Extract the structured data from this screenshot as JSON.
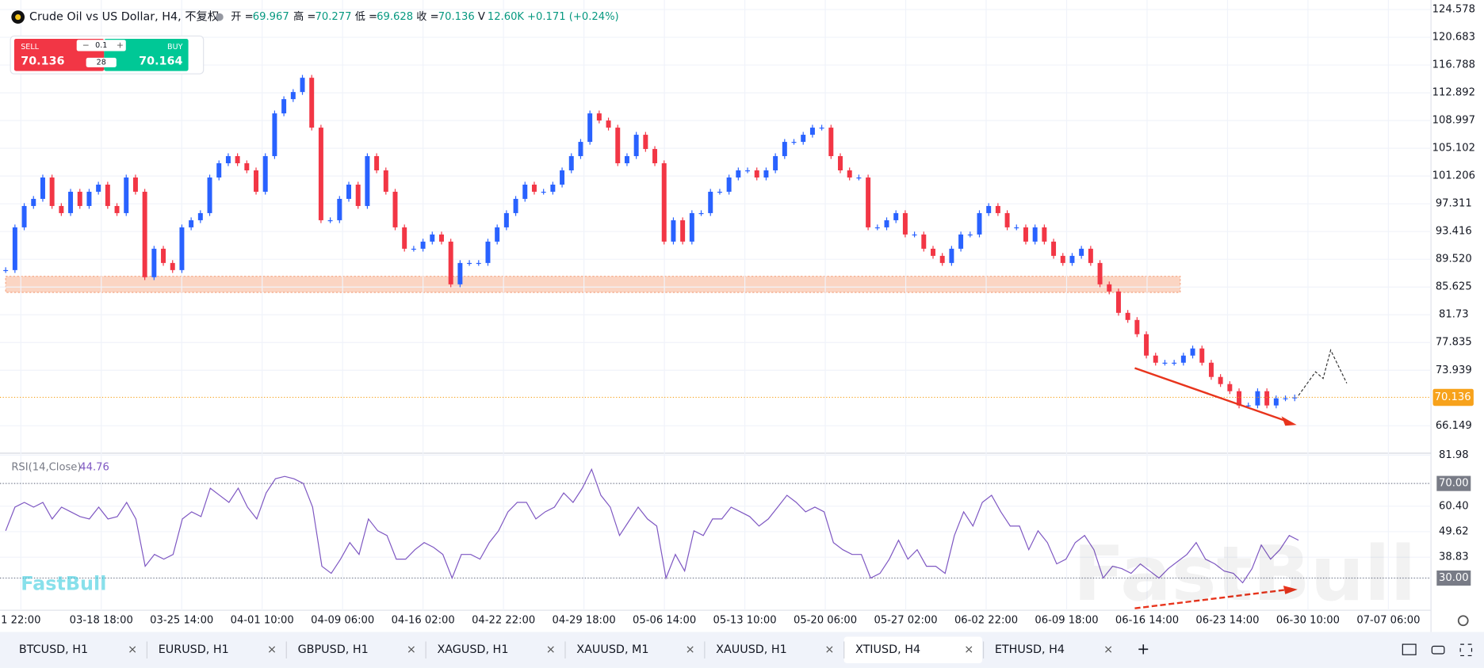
{
  "header": {
    "title": "Crude Oil vs US Dollar, H4, 不复权",
    "open_label": "开 =",
    "open": 69.967,
    "high_label": "高 =",
    "high": 70.277,
    "low_label": "低 =",
    "low": 69.628,
    "close_label": "收 =",
    "close": 70.136,
    "volume_label": "V",
    "volume": "12.60K",
    "change": "+0.171 (+0.24%)"
  },
  "trade_widget": {
    "sell_label": "SELL",
    "sell": 70.136,
    "lot": 0.1,
    "spread": 28,
    "buy_label": "BUY",
    "buy": 70.164
  },
  "chart_data": [
    {
      "type": "candle",
      "ylim": [
        62.43,
        125.91
      ],
      "yticks": [
        124.578,
        120.683,
        116.788,
        112.892,
        108.997,
        105.102,
        101.206,
        97.311,
        93.416,
        {
          "value": 89.52,
          "label": "89.520"
        },
        85.625,
        81.73,
        77.835,
        73.939,
        66.149
      ],
      "last_price": 70.136,
      "up_color": "#2962ff",
      "down_color": "#f23645",
      "x_tick_labels": [
        "1 22:00",
        "03-18 18:00",
        "03-25 14:00",
        "04-01 10:00",
        "04-09 06:00",
        "04-16 02:00",
        "04-22 22:00",
        "04-29 18:00",
        "05-06 14:00",
        "05-13 10:00",
        "05-20 06:00",
        "05-27 02:00",
        "06-02 22:00",
        "06-09 18:00",
        "06-16 14:00",
        "06-23 14:00",
        "06-30 10:00",
        "07-07 06:00"
      ],
      "series": [
        {
          "name": "XTIUSD",
          "values": [
            88,
            94,
            97,
            98,
            101,
            97,
            96,
            99,
            97,
            99,
            100,
            97,
            96,
            101,
            99,
            87,
            91,
            89,
            88,
            94,
            95,
            96,
            101,
            103,
            104,
            103,
            102,
            99,
            104,
            110,
            112,
            113,
            115,
            108,
            95,
            95,
            98,
            100,
            97,
            104,
            102,
            99,
            94,
            91,
            91,
            92,
            93,
            92,
            86,
            89,
            89,
            89,
            92,
            94,
            96,
            98,
            100,
            99,
            99,
            100,
            102,
            104,
            106,
            110,
            109,
            108,
            103,
            104,
            107,
            105,
            103,
            92,
            95,
            92,
            96,
            96,
            99,
            99,
            101,
            102,
            102,
            101,
            102,
            104,
            106,
            106,
            107,
            108,
            108,
            104,
            102,
            101,
            101,
            94,
            94,
            95,
            96,
            93,
            93,
            91,
            90,
            89,
            91,
            93,
            93,
            96,
            97,
            96,
            94,
            94,
            92,
            94,
            92,
            90,
            89,
            90,
            91,
            89,
            86,
            85,
            82,
            81,
            79,
            76,
            75,
            75,
            75,
            76,
            77,
            75,
            73,
            72,
            71,
            69,
            69,
            71,
            69,
            70,
            70,
            70.136
          ]
        }
      ]
    },
    {
      "type": "line",
      "title": "RSI(14,Close)",
      "current": 44.76,
      "color": "#7e57c2",
      "ylim": [
        16.4,
        82.4
      ],
      "yticks": [
        81.98,
        {
          "value": 70,
          "label": "70.00"
        },
        {
          "value": 60.4,
          "label": "60.40"
        },
        49.62,
        38.83,
        {
          "value": 30,
          "label": "30.00"
        }
      ],
      "levels": [
        70,
        30
      ],
      "series": [
        {
          "name": "RSI",
          "values": [
            50,
            60,
            62,
            60,
            62,
            55,
            60,
            58,
            56,
            55,
            60,
            55,
            56,
            62,
            55,
            35,
            40,
            38,
            40,
            55,
            58,
            56,
            68,
            65,
            62,
            68,
            60,
            55,
            66,
            72,
            73,
            72,
            70,
            60,
            35,
            32,
            38,
            45,
            40,
            55,
            50,
            48,
            38,
            38,
            42,
            45,
            43,
            40,
            30,
            40,
            40,
            38,
            45,
            50,
            58,
            62,
            62,
            55,
            58,
            60,
            66,
            62,
            68,
            76,
            65,
            60,
            48,
            54,
            60,
            55,
            52,
            30,
            40,
            33,
            50,
            48,
            55,
            55,
            60,
            58,
            56,
            52,
            55,
            60,
            65,
            62,
            58,
            60,
            58,
            45,
            42,
            40,
            40,
            30,
            32,
            38,
            46,
            38,
            42,
            35,
            35,
            32,
            48,
            58,
            52,
            62,
            65,
            58,
            52,
            52,
            42,
            50,
            45,
            36,
            38,
            45,
            48,
            42,
            30,
            35,
            34,
            32,
            36,
            33,
            30,
            34,
            37,
            40,
            45,
            38,
            36,
            33,
            32,
            28,
            34,
            44,
            38,
            42,
            48,
            46
          ]
        }
      ]
    }
  ],
  "watermarks": [
    "FastBull",
    "FastBull"
  ],
  "tabs": [
    "BTCUSD, H1",
    "EURUSD, H1",
    "GBPUSD, H1",
    "XAGUSD, H1",
    "XAUUSD, M1",
    "XAUUSD, H1",
    "XTIUSD, H4",
    "ETHUSD, H4"
  ]
}
